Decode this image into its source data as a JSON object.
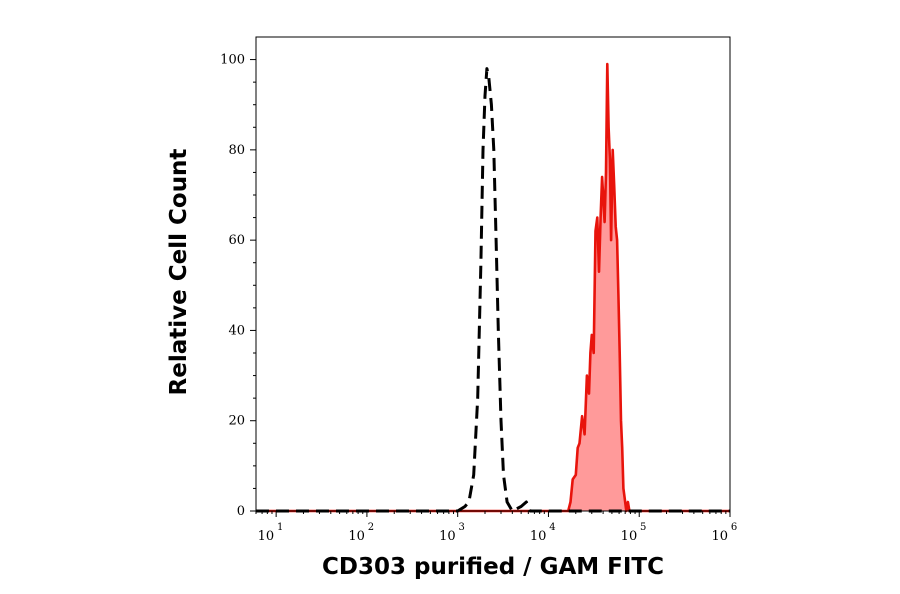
{
  "chart_data": {
    "type": "area",
    "xlabel": "CD303 purified / GAM FITC",
    "ylabel": "Relative Cell Count",
    "x_scale": "log",
    "xlim": [
      6,
      1000000
    ],
    "ylim": [
      0,
      105
    ],
    "x_ticks": [
      {
        "base": "10",
        "exp": "1",
        "value": 10
      },
      {
        "base": "10",
        "exp": "2",
        "value": 100
      },
      {
        "base": "10",
        "exp": "3",
        "value": 1000
      },
      {
        "base": "10",
        "exp": "4",
        "value": 10000
      },
      {
        "base": "10",
        "exp": "5",
        "value": 100000
      },
      {
        "base": "10",
        "exp": "6",
        "value": 1000000
      }
    ],
    "y_ticks": [
      {
        "label": "0",
        "value": 0
      },
      {
        "label": "20",
        "value": 20
      },
      {
        "label": "40",
        "value": 40
      },
      {
        "label": "60",
        "value": 60
      },
      {
        "label": "80",
        "value": 80
      },
      {
        "label": "100",
        "value": 100
      }
    ],
    "grid": false,
    "series": [
      {
        "style": "dashed",
        "color": "#000000",
        "fill": "none",
        "points": [
          [
            6,
            0
          ],
          [
            800,
            0
          ],
          [
            1000,
            0
          ],
          [
            1200,
            1
          ],
          [
            1330,
            2
          ],
          [
            1500,
            8
          ],
          [
            1660,
            25
          ],
          [
            1800,
            55
          ],
          [
            1900,
            80
          ],
          [
            2000,
            92
          ],
          [
            2100,
            98
          ],
          [
            2200,
            96
          ],
          [
            2350,
            90
          ],
          [
            2500,
            80
          ],
          [
            2650,
            60
          ],
          [
            2800,
            40
          ],
          [
            3000,
            20
          ],
          [
            3200,
            8
          ],
          [
            3500,
            2
          ],
          [
            4000,
            0
          ],
          [
            5000,
            1
          ],
          [
            5700,
            2
          ],
          [
            6300,
            0
          ],
          [
            1000000,
            0
          ]
        ]
      },
      {
        "style": "solid",
        "color": "#e8140c",
        "fill": "#ff9a9a",
        "points": [
          [
            6,
            0
          ],
          [
            15000,
            0
          ],
          [
            16500,
            0
          ],
          [
            17500,
            2
          ],
          [
            18500,
            7
          ],
          [
            20000,
            8
          ],
          [
            21000,
            14
          ],
          [
            22000,
            15
          ],
          [
            23500,
            21
          ],
          [
            25000,
            17
          ],
          [
            26500,
            30
          ],
          [
            28000,
            26
          ],
          [
            29000,
            35
          ],
          [
            30000,
            39
          ],
          [
            31500,
            35
          ],
          [
            33000,
            62
          ],
          [
            34500,
            65
          ],
          [
            36000,
            53
          ],
          [
            37500,
            65
          ],
          [
            39000,
            74
          ],
          [
            40000,
            70
          ],
          [
            41500,
            64
          ],
          [
            43000,
            75
          ],
          [
            44500,
            99
          ],
          [
            46000,
            85
          ],
          [
            47500,
            78
          ],
          [
            49000,
            60
          ],
          [
            51000,
            80
          ],
          [
            53000,
            72
          ],
          [
            55000,
            63
          ],
          [
            57000,
            60
          ],
          [
            59000,
            48
          ],
          [
            61000,
            35
          ],
          [
            63000,
            20
          ],
          [
            65000,
            14
          ],
          [
            67000,
            5
          ],
          [
            69000,
            3
          ],
          [
            72000,
            0
          ],
          [
            75000,
            2
          ],
          [
            78000,
            0
          ],
          [
            1000000,
            0
          ]
        ]
      }
    ]
  }
}
